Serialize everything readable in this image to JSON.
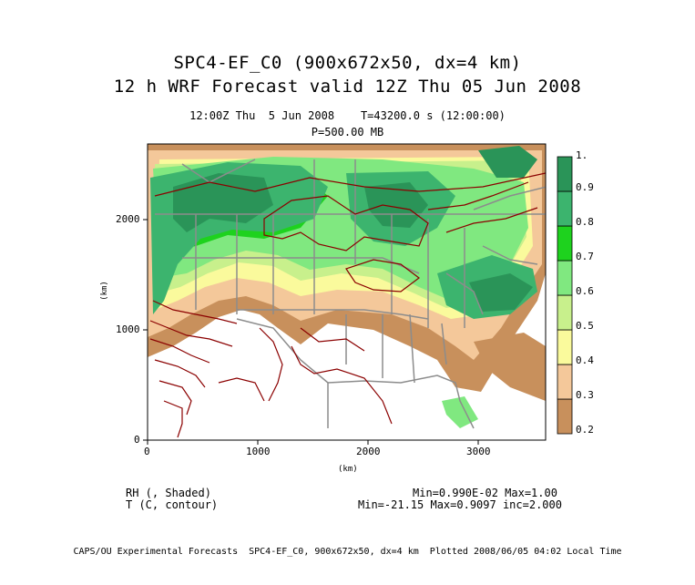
{
  "header": {
    "title_line1": "SPC4-EF_C0 (900x672x50, dx=4 km)",
    "title_line2": "12 h WRF Forecast valid 12Z Thu 05 Jun 2008",
    "subtitle_line1": "12:00Z Thu  5 Jun 2008    T=43200.0 s (12:00:00)",
    "subtitle_line2": "P=500.00 MB"
  },
  "axes": {
    "x_ticks": [
      "0",
      "1000",
      "2000",
      "3000"
    ],
    "y_ticks": [
      "0",
      "1000",
      "2000"
    ],
    "x_label": "(km)",
    "y_label": "(km)"
  },
  "colorbar": {
    "levels": [
      "0.2",
      "0.3",
      "0.4",
      "0.5",
      "0.6",
      "0.7",
      "0.8",
      "0.9",
      "1."
    ],
    "colors": [
      "#c8905c",
      "#f4c89a",
      "#fafa9c",
      "#c8f08c",
      "#80e880",
      "#1ed21e",
      "#3cb46e",
      "#2a9458"
    ]
  },
  "legend": {
    "shaded_label": "RH (, Shaded)",
    "contour_label": "T (C, contour)",
    "shaded_stats": "Min=0.990E-02 Max=1.00",
    "contour_stats": "Min=-21.15 Max=0.9097 inc=2.000"
  },
  "footer": "CAPS/OU Experimental Forecasts  SPC4-EF_C0, 900x672x50, dx=4 km  Plotted 2008/06/05 04:02 Local Time",
  "colors": {
    "contour": "#8b0000",
    "boundaries": "#8c8c8c"
  }
}
